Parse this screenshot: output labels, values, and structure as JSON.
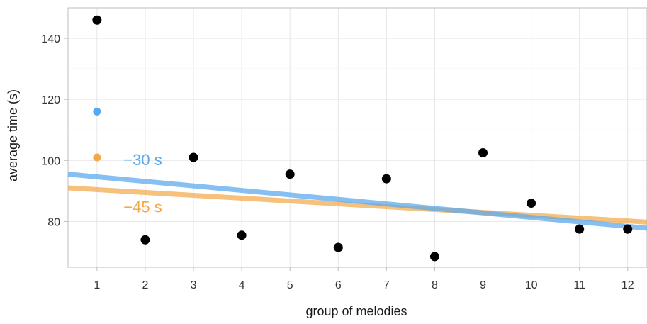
{
  "chart_data": {
    "type": "scatter",
    "xlabel": "group of melodies",
    "ylabel": "average time (s)",
    "xlim": [
      0.4,
      12.4
    ],
    "ylim": [
      65,
      150
    ],
    "x_ticks": [
      1,
      2,
      3,
      4,
      5,
      6,
      7,
      8,
      9,
      10,
      11,
      12
    ],
    "y_ticks": [
      80,
      100,
      120,
      140
    ],
    "grid": true,
    "points": [
      {
        "x": 1,
        "y": 146
      },
      {
        "x": 2,
        "y": 74
      },
      {
        "x": 3,
        "y": 101
      },
      {
        "x": 4,
        "y": 75.5
      },
      {
        "x": 5,
        "y": 95.5
      },
      {
        "x": 6,
        "y": 71.5
      },
      {
        "x": 7,
        "y": 94
      },
      {
        "x": 8,
        "y": 68.5
      },
      {
        "x": 9,
        "y": 102.5
      },
      {
        "x": 10,
        "y": 86
      },
      {
        "x": 11,
        "y": 77.5
      },
      {
        "x": 12,
        "y": 77.5
      }
    ],
    "series": [
      {
        "label": "−30 s",
        "color": "#58a8ef",
        "marker": {
          "x": 1,
          "y": 116
        },
        "line": [
          {
            "x": 0.4,
            "y": 95.5
          },
          {
            "x": 12.4,
            "y": 77.8
          }
        ]
      },
      {
        "label": "−45 s",
        "color": "#f3a949",
        "marker": {
          "x": 1,
          "y": 101
        },
        "line": [
          {
            "x": 0.4,
            "y": 91
          },
          {
            "x": 12.4,
            "y": 79.8
          }
        ]
      }
    ],
    "colors": {
      "points": "#000000",
      "grid": "#e6e6e6",
      "axis": "#bdbdbd"
    }
  }
}
